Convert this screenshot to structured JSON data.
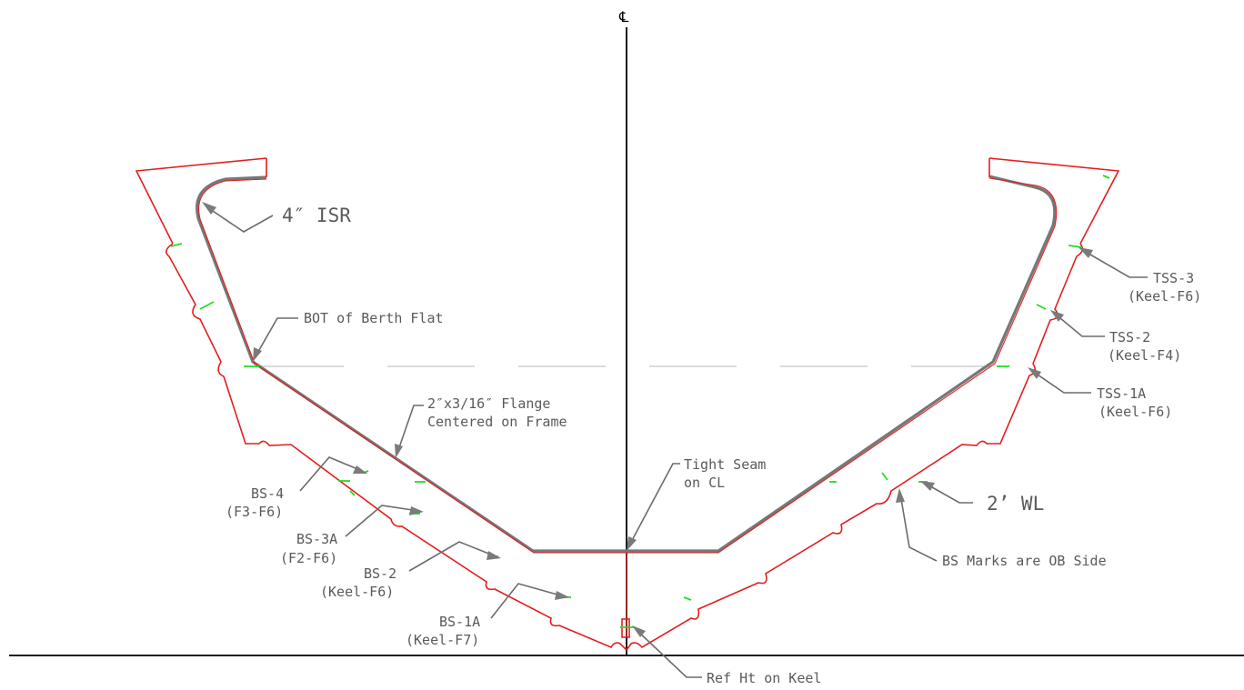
{
  "drawing": {
    "centerline_symbol": "℄",
    "labels": {
      "isr": "4″ ISR",
      "berth_flat": "BOT of Berth Flat",
      "flange_line1": "2″x3/16″ Flange",
      "flange_line2": "Centered on Frame",
      "tight_seam_line1": "Tight Seam",
      "tight_seam_line2": "on CL",
      "waterline": "2’ WL",
      "bs_marks": "BS Marks are OB Side",
      "ref_ht": "Ref Ht on Keel",
      "bs4": "BS-4",
      "bs4_sub": "(F3-F6)",
      "bs3a": "BS-3A",
      "bs3a_sub": "(F2-F6)",
      "bs2": "BS-2",
      "bs2_sub": "(Keel-F6)",
      "bs1a": "BS-1A",
      "bs1a_sub": "(Keel-F7)",
      "tss3": "TSS-3",
      "tss3_sub": "(Keel-F6)",
      "tss2": "TSS-2",
      "tss2_sub": "(Keel-F4)",
      "tss1a": "TSS-1A",
      "tss1a_sub": "(Keel-F6)"
    }
  }
}
